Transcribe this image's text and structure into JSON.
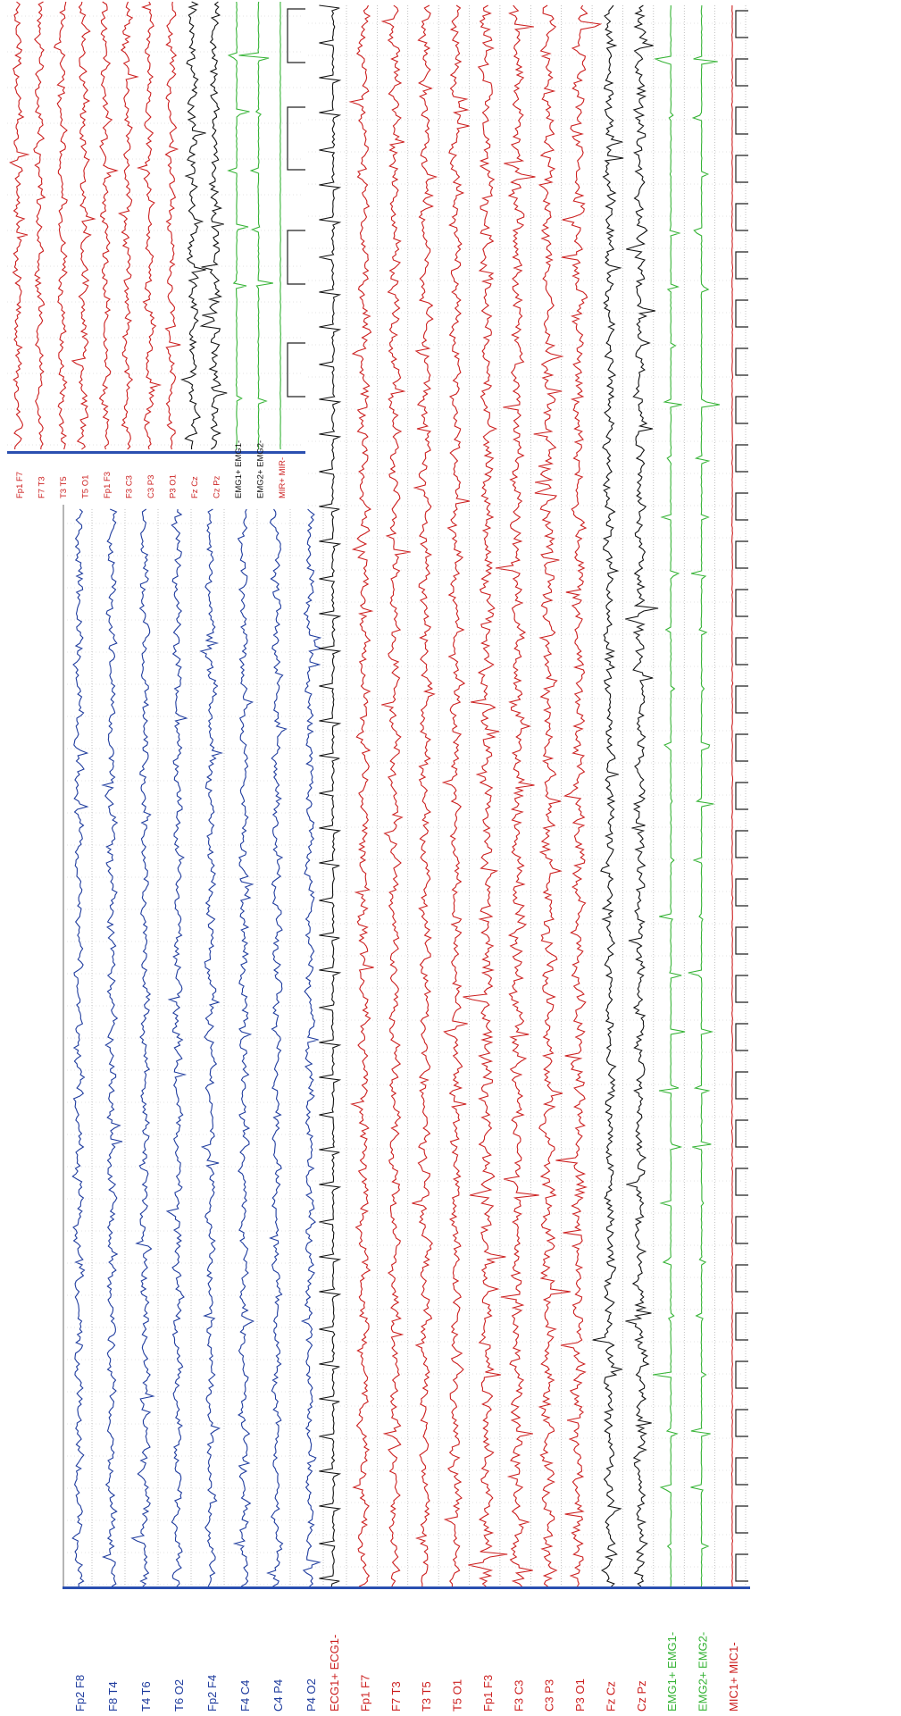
{
  "colors": {
    "blue": "#1f3c9e",
    "red": "#cc1f1f",
    "black": "#111111",
    "green": "#35b335",
    "grid": "#9a9a9a",
    "baseline": "#2a4fb0",
    "frame": "#b5b5b5"
  },
  "chart_data": [
    {
      "type": "line",
      "orientation": "rotated-90",
      "description_of_layout": "main recording strip",
      "channels": [
        {
          "label": "Fp2 F8",
          "color_key": "blue"
        },
        {
          "label": "F8 T4",
          "color_key": "blue"
        },
        {
          "label": "T4 T6",
          "color_key": "blue"
        },
        {
          "label": "T6 O2",
          "color_key": "blue"
        },
        {
          "label": "Fp2 F4",
          "color_key": "blue"
        },
        {
          "label": "F4 C4",
          "color_key": "blue"
        },
        {
          "label": "C4 P4",
          "color_key": "blue"
        },
        {
          "label": "P4 O2",
          "color_key": "blue"
        },
        {
          "label": "ECG1+ ECG1-",
          "color_key": "black"
        },
        {
          "label": "Fp1 F7",
          "color_key": "red"
        },
        {
          "label": "F7 T3",
          "color_key": "red"
        },
        {
          "label": "T3 T5",
          "color_key": "red"
        },
        {
          "label": "T5 O1",
          "color_key": "red"
        },
        {
          "label": "Fp1 F3",
          "color_key": "red"
        },
        {
          "label": "F3 C3",
          "color_key": "red"
        },
        {
          "label": "C3 P3",
          "color_key": "red"
        },
        {
          "label": "P3 O1",
          "color_key": "red"
        },
        {
          "label": "Fz Cz",
          "color_key": "black"
        },
        {
          "label": "Cz Pz",
          "color_key": "black"
        },
        {
          "label": "EMG1+ EMG1-",
          "color_key": "green"
        },
        {
          "label": "EMG2+ EMG2-",
          "color_key": "green"
        },
        {
          "label": "MIC1+ MIC1-",
          "color_key": "red"
        }
      ]
    },
    {
      "type": "line",
      "orientation": "rotated-90",
      "description_of_layout": "inset strip",
      "channels": [
        {
          "label": "Fp1 F7",
          "color_key": "red"
        },
        {
          "label": "F7 T3",
          "color_key": "red"
        },
        {
          "label": "T3 T5",
          "color_key": "red"
        },
        {
          "label": "T5 O1",
          "color_key": "red"
        },
        {
          "label": "Fp1 F3",
          "color_key": "red"
        },
        {
          "label": "F3 C3",
          "color_key": "red"
        },
        {
          "label": "C3 P3",
          "color_key": "red"
        },
        {
          "label": "P3 O1",
          "color_key": "red"
        },
        {
          "label": "Fz Cz",
          "color_key": "black"
        },
        {
          "label": "Cz Pz",
          "color_key": "black"
        },
        {
          "label": "EMG1+ EMG1-",
          "color_key": "black"
        },
        {
          "label": "EMG2+ EMG2-",
          "color_key": "black"
        },
        {
          "label": "MIR+ MIR-",
          "color_key": "red"
        }
      ]
    }
  ]
}
